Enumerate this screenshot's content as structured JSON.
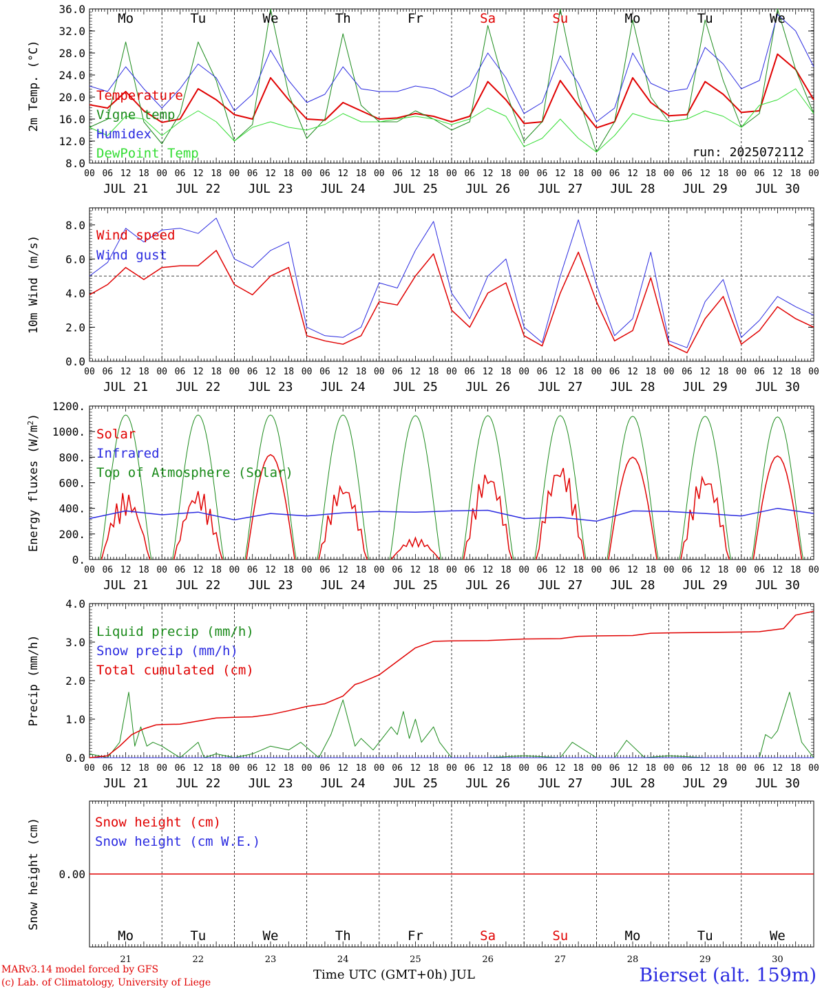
{
  "footer": {
    "model_line": "MARv3.14 model forced by GFS",
    "credit_line": "(c) Lab. of Climatology, University of Liege",
    "time_axis_label": "Time UTC (GMT+0h) JUL",
    "station": "Bierset (alt. 159m)"
  },
  "chart_data": [
    {
      "type": "line",
      "id": "temperature",
      "ylabel": "2m Temp. (°C)",
      "ylim": [
        8,
        36
      ],
      "yticks": [
        "8.0",
        "12.0",
        "16.0",
        "20.0",
        "24.0",
        "28.0",
        "32.0",
        "36.0"
      ],
      "day_labels": [
        "Mo",
        "Tu",
        "We",
        "Th",
        "Fr",
        "Sa",
        "Su",
        "Mo",
        "Tu",
        "We"
      ],
      "day_label_colors": [
        "#000000",
        "#000000",
        "#000000",
        "#000000",
        "#000000",
        "#e00000",
        "#e00000",
        "#000000",
        "#000000",
        "#000000"
      ],
      "hour_ticks": [
        "00",
        "06",
        "12",
        "18"
      ],
      "date_labels": [
        "JUL 21",
        "JUL 22",
        "JUL 23",
        "JUL 24",
        "JUL 25",
        "JUL 26",
        "JUL 27",
        "JUL 28",
        "JUL 29",
        "JUL 30"
      ],
      "annotation": "run: 2025072112",
      "x_hours": [
        0,
        6,
        12,
        18,
        24,
        30,
        36,
        42,
        48,
        54,
        60,
        66,
        72,
        78,
        84,
        90,
        96,
        102,
        108,
        114,
        120,
        126,
        132,
        138,
        144,
        150,
        156,
        162,
        168,
        174,
        180,
        186,
        192,
        198,
        204,
        210,
        216,
        222,
        228,
        234,
        240
      ],
      "series": [
        {
          "name": "Temperature",
          "color": "#e00000",
          "width": 2,
          "values": [
            18.6,
            18.0,
            21.0,
            17.5,
            15.4,
            16.0,
            21.5,
            19.5,
            16.8,
            16.0,
            23.5,
            19.5,
            16.0,
            15.8,
            19.0,
            17.5,
            16.0,
            16.2,
            17.0,
            16.5,
            15.5,
            16.5,
            22.8,
            19.5,
            15.2,
            15.5,
            23.0,
            18.5,
            14.4,
            15.5,
            23.5,
            19.0,
            16.6,
            16.8,
            22.8,
            20.5,
            17.2,
            17.5,
            27.8,
            25.0,
            19.5
          ]
        },
        {
          "name": "Vigne temp",
          "color": "#1a8a1a",
          "width": 1,
          "values": [
            14.5,
            16.0,
            30.0,
            15.5,
            11.5,
            17.0,
            30.0,
            23.0,
            12.0,
            15.0,
            36.0,
            20.5,
            12.5,
            16.0,
            31.5,
            18.5,
            15.5,
            15.5,
            17.5,
            16.0,
            14.0,
            15.5,
            33.0,
            21.0,
            12.0,
            15.5,
            36.0,
            20.0,
            10.0,
            15.5,
            34.0,
            20.0,
            15.5,
            16.0,
            34.0,
            23.0,
            14.5,
            17.0,
            36.0,
            25.0,
            17.0
          ]
        },
        {
          "name": "Humidex",
          "color": "#2a2ae0",
          "width": 1,
          "values": [
            22.0,
            21.0,
            25.5,
            21.5,
            18.0,
            21.5,
            26.0,
            23.5,
            17.5,
            20.5,
            28.5,
            23.0,
            19.0,
            20.5,
            25.5,
            21.5,
            21.0,
            21.0,
            22.0,
            21.5,
            20.0,
            22.0,
            28.0,
            23.5,
            17.0,
            19.0,
            27.5,
            22.5,
            15.5,
            18.0,
            28.0,
            22.5,
            21.0,
            21.5,
            29.0,
            26.0,
            21.5,
            23.0,
            35.0,
            32.0,
            25.5
          ]
        },
        {
          "name": "DewPoint Temp",
          "color": "#33dd33",
          "width": 1,
          "values": [
            14.5,
            13.0,
            16.5,
            16.0,
            13.0,
            15.5,
            17.5,
            15.5,
            12.0,
            14.5,
            15.5,
            14.5,
            14.0,
            15.0,
            17.0,
            15.5,
            15.5,
            16.0,
            16.5,
            16.0,
            15.0,
            16.0,
            18.0,
            16.5,
            11.0,
            12.5,
            16.0,
            12.5,
            10.0,
            13.0,
            17.0,
            16.0,
            15.5,
            16.0,
            17.5,
            16.5,
            14.5,
            18.5,
            19.5,
            21.5,
            17.0
          ]
        }
      ]
    },
    {
      "type": "line",
      "id": "wind",
      "ylabel": "10m Wind (m/s)",
      "ylim": [
        0,
        9
      ],
      "yticks": [
        "0.0",
        "2.0",
        "4.0",
        "6.0",
        "8.0"
      ],
      "reference_line": 5,
      "hour_ticks": [
        "00",
        "06",
        "12",
        "18"
      ],
      "date_labels": [
        "JUL 21",
        "JUL 22",
        "JUL 23",
        "JUL 24",
        "JUL 25",
        "JUL 26",
        "JUL 27",
        "JUL 28",
        "JUL 29",
        "JUL 30"
      ],
      "x_hours": [
        0,
        6,
        12,
        18,
        24,
        30,
        36,
        42,
        48,
        54,
        60,
        66,
        72,
        78,
        84,
        90,
        96,
        102,
        108,
        114,
        120,
        126,
        132,
        138,
        144,
        150,
        156,
        162,
        168,
        174,
        180,
        186,
        192,
        198,
        204,
        210,
        216,
        222,
        228,
        234,
        240
      ],
      "series": [
        {
          "name": "Wind speed",
          "color": "#e00000",
          "width": 1.5,
          "values": [
            3.9,
            4.5,
            5.5,
            4.8,
            5.5,
            5.6,
            5.6,
            6.5,
            4.5,
            3.9,
            5.0,
            5.5,
            1.5,
            1.2,
            1.0,
            1.5,
            3.5,
            3.3,
            5.0,
            6.3,
            3.0,
            2.0,
            4.0,
            4.6,
            1.5,
            0.9,
            4.0,
            6.4,
            3.5,
            1.2,
            1.8,
            4.9,
            1.0,
            0.5,
            2.5,
            3.8,
            1.0,
            1.8,
            3.2,
            2.5,
            2.0
          ]
        },
        {
          "name": "Wind gust",
          "color": "#2a2ae0",
          "width": 1,
          "values": [
            5.0,
            5.8,
            7.8,
            7.0,
            7.7,
            7.8,
            7.5,
            8.4,
            6.0,
            5.5,
            6.5,
            7.0,
            2.0,
            1.5,
            1.4,
            2.0,
            4.6,
            4.3,
            6.5,
            8.2,
            4.0,
            2.5,
            5.0,
            6.0,
            2.0,
            1.1,
            5.0,
            8.3,
            4.5,
            1.5,
            2.5,
            6.4,
            1.2,
            0.8,
            3.5,
            4.8,
            1.4,
            2.4,
            3.8,
            3.2,
            2.7
          ]
        }
      ]
    },
    {
      "type": "line",
      "id": "energy",
      "ylabel": "Energy fluxes (W/m²)",
      "ylim": [
        0,
        1200
      ],
      "yticks": [
        "0.",
        "200.",
        "400.",
        "600.",
        "800.",
        "1000.",
        "1200."
      ],
      "hour_ticks": [
        "00",
        "06",
        "12",
        "18"
      ],
      "date_labels": [
        "JUL 21",
        "JUL 22",
        "JUL 23",
        "JUL 24",
        "JUL 25",
        "JUL 26",
        "JUL 27",
        "JUL 28",
        "JUL 29",
        "JUL 30"
      ],
      "series": [
        {
          "name": "Solar",
          "color": "#e00000",
          "width": 1.5,
          "peaks": [
            530,
            560,
            820,
            620,
            170,
            720,
            780,
            800,
            700,
            810
          ]
        },
        {
          "name": "Infrared",
          "color": "#2a2ae0",
          "width": 1.5,
          "x_hours": [
            0,
            12,
            24,
            36,
            48,
            60,
            72,
            84,
            96,
            108,
            120,
            132,
            144,
            156,
            168,
            180,
            192,
            204,
            216,
            228,
            240
          ],
          "values": [
            320,
            380,
            350,
            370,
            310,
            360,
            340,
            365,
            375,
            370,
            380,
            385,
            320,
            330,
            300,
            380,
            375,
            360,
            340,
            400,
            360
          ]
        },
        {
          "name": "Top of Atmosphere (Solar)",
          "color": "#1a8a1a",
          "width": 1,
          "peaks": [
            1130,
            1130,
            1130,
            1130,
            1125,
            1125,
            1125,
            1120,
            1120,
            1115
          ]
        }
      ]
    },
    {
      "type": "line",
      "id": "precip",
      "ylabel": "Precip (mm/h)",
      "ylim": [
        0,
        4
      ],
      "yticks": [
        "0.0",
        "1.0",
        "2.0",
        "3.0",
        "4.0"
      ],
      "hour_ticks": [
        "00",
        "06",
        "12",
        "18"
      ],
      "date_labels": [
        "JUL 21",
        "JUL 22",
        "JUL 23",
        "JUL 24",
        "JUL 25",
        "JUL 26",
        "JUL 27",
        "JUL 28",
        "JUL 29",
        "JUL 30"
      ],
      "series": [
        {
          "name": "Liquid precip (mm/h)",
          "color": "#1a8a1a",
          "width": 1,
          "x_hours": [
            0,
            6,
            10,
            13,
            15,
            17,
            19,
            21,
            24,
            30,
            36,
            38,
            42,
            48,
            54,
            60,
            66,
            70,
            76,
            80,
            84,
            88,
            90,
            94,
            100,
            102,
            104,
            106,
            108,
            110,
            112,
            114,
            116,
            118,
            120,
            124,
            132,
            144,
            156,
            160,
            168,
            174,
            178,
            184,
            192,
            204,
            216,
            222,
            224,
            226,
            228,
            232,
            236,
            240
          ],
          "values": [
            0.1,
            0.0,
            0.4,
            1.7,
            0.3,
            0.8,
            0.3,
            0.4,
            0.3,
            0.0,
            0.4,
            0.0,
            0.1,
            0.0,
            0.1,
            0.3,
            0.2,
            0.4,
            0.0,
            0.6,
            1.5,
            0.3,
            0.5,
            0.2,
            0.8,
            0.6,
            1.2,
            0.5,
            1.0,
            0.4,
            0.6,
            0.8,
            0.4,
            0.2,
            0.0,
            0.0,
            0.0,
            0.05,
            0.0,
            0.4,
            0.0,
            0.0,
            0.45,
            0.0,
            0.05,
            0.0,
            0.0,
            0.0,
            0.6,
            0.5,
            0.7,
            1.7,
            0.4,
            0.0
          ]
        },
        {
          "name": "Snow precip (mm/h)",
          "color": "#2a2ae0",
          "width": 1,
          "x_hours": [
            0,
            240
          ],
          "values": [
            0,
            0
          ]
        },
        {
          "name": "Total cumulated (cm)",
          "color": "#e00000",
          "width": 1.5,
          "x_hours": [
            0,
            6,
            10,
            14,
            18,
            22,
            24,
            30,
            36,
            42,
            48,
            54,
            60,
            66,
            72,
            78,
            84,
            88,
            90,
            96,
            102,
            108,
            114,
            120,
            132,
            138,
            144,
            156,
            162,
            168,
            180,
            186,
            192,
            204,
            216,
            222,
            230,
            234,
            240
          ],
          "values": [
            0.0,
            0.05,
            0.3,
            0.6,
            0.75,
            0.85,
            0.86,
            0.87,
            0.95,
            1.03,
            1.05,
            1.06,
            1.12,
            1.22,
            1.33,
            1.4,
            1.6,
            1.9,
            1.95,
            2.15,
            2.5,
            2.85,
            3.02,
            3.03,
            3.04,
            3.06,
            3.08,
            3.09,
            3.15,
            3.16,
            3.17,
            3.23,
            3.24,
            3.25,
            3.26,
            3.27,
            3.35,
            3.7,
            3.8
          ]
        }
      ]
    },
    {
      "type": "line",
      "id": "snow",
      "ylabel": "Snow height (cm)",
      "yticks": [
        "0.00"
      ],
      "day_labels": [
        "Mo",
        "Tu",
        "We",
        "Th",
        "Fr",
        "Sa",
        "Su",
        "Mo",
        "Tu",
        "We"
      ],
      "day_label_colors": [
        "#000000",
        "#000000",
        "#000000",
        "#000000",
        "#000000",
        "#e00000",
        "#e00000",
        "#000000",
        "#000000",
        "#000000"
      ],
      "day_numbers": [
        "21",
        "22",
        "23",
        "24",
        "25",
        "26",
        "27",
        "28",
        "29",
        "30"
      ],
      "series": [
        {
          "name": "Snow height (cm)",
          "color": "#e00000",
          "width": 1.5,
          "values": [
            0,
            0
          ]
        },
        {
          "name": "Snow height (cm W.E.)",
          "color": "#2a2ae0",
          "width": 1,
          "values": [
            0,
            0
          ]
        }
      ]
    }
  ]
}
